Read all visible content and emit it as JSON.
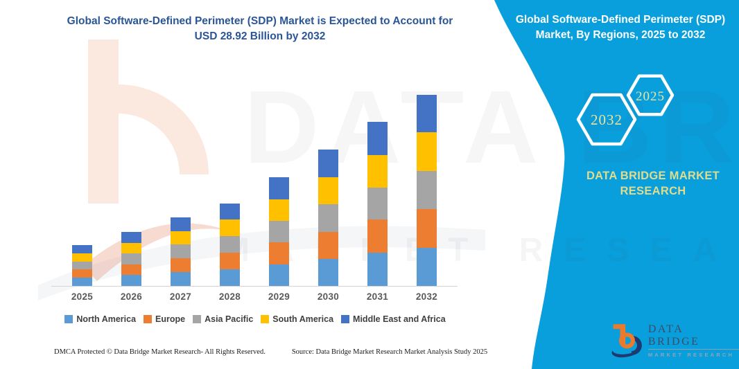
{
  "left_panel": {
    "title_line1": "Global Software-Defined Perimeter (SDP) Market is Expected to Account for",
    "title_line2": "USD 28.92 Billion by 2032"
  },
  "right_panel": {
    "title_line1": "Global Software-Defined Perimeter (SDP)",
    "title_line2": "Market, By Regions, 2025 to 2032",
    "hexagon_year_far": "2032",
    "hexagon_year_near": "2025",
    "brand_caption": "DATA BRIDGE MARKET RESEARCH",
    "background_color": "#089FDC",
    "accent_text_color": "#E9E5A0",
    "logo": {
      "name": "DATA BRIDGE",
      "tagline": "MARKET RESEARCH"
    }
  },
  "chart_data": {
    "type": "bar",
    "stacked": true,
    "title": "Global Software-Defined Perimeter (SDP) Market, By Regions, 2025 to 2032",
    "unit": "USD Billion",
    "categories": [
      "2025",
      "2026",
      "2027",
      "2028",
      "2029",
      "2030",
      "2031",
      "2032"
    ],
    "series": [
      {
        "name": "North America",
        "color": "#5B9BD5",
        "values": [
          1.3,
          1.7,
          2.1,
          2.5,
          3.3,
          4.1,
          5.0,
          5.8
        ]
      },
      {
        "name": "Europe",
        "color": "#ED7D31",
        "values": [
          1.2,
          1.6,
          2.1,
          2.5,
          3.3,
          4.1,
          5.0,
          5.8
        ]
      },
      {
        "name": "Asia Pacific",
        "color": "#A5A5A5",
        "values": [
          1.2,
          1.6,
          2.1,
          2.5,
          3.3,
          4.1,
          4.9,
          5.8
        ]
      },
      {
        "name": "South America",
        "color": "#FFC000",
        "values": [
          1.2,
          1.6,
          2.0,
          2.5,
          3.2,
          4.1,
          4.9,
          5.8
        ]
      },
      {
        "name": "Middle East and Africa",
        "color": "#4472C4",
        "values": [
          1.3,
          1.7,
          2.1,
          2.5,
          3.3,
          4.2,
          5.0,
          5.7
        ]
      }
    ],
    "totals": [
      6.2,
      8.2,
      10.4,
      12.5,
      16.4,
      20.6,
      24.8,
      28.9
    ],
    "ylim": [
      0,
      29
    ],
    "y_axis_visible": false,
    "gridlines": false,
    "legend_position": "bottom"
  },
  "footer": {
    "left": "DMCA Protected © Data Bridge Market Research- All Rights Reserved.",
    "right": "Source: Data Bridge Market Research Market Analysis Study 2025"
  },
  "watermark": {
    "main": "DATA BRIDGE",
    "sub": "MARKET RESEARCH"
  }
}
